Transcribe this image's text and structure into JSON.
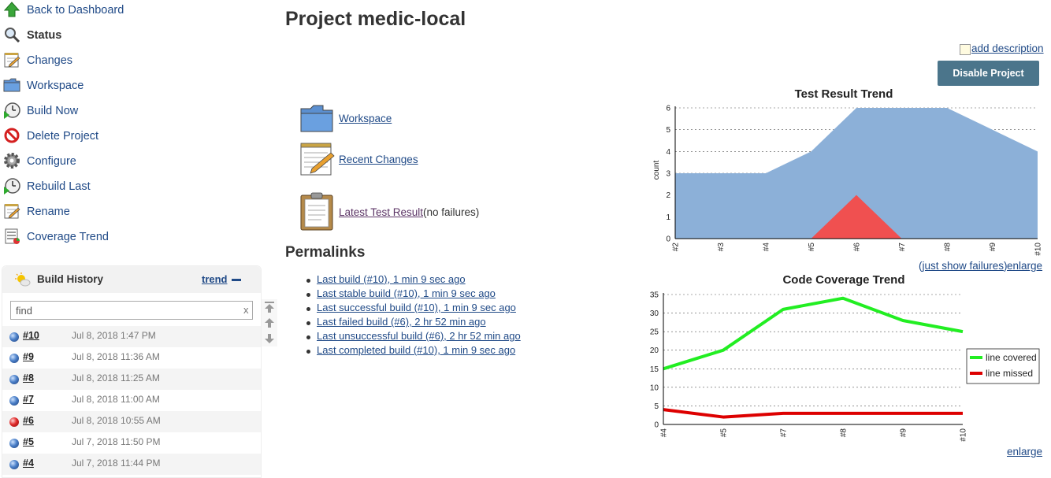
{
  "sidebar": {
    "items": [
      {
        "label": "Back to Dashboard",
        "icon": "up-arrow-icon"
      },
      {
        "label": "Status",
        "icon": "search-icon",
        "active": true
      },
      {
        "label": "Changes",
        "icon": "notepad-icon"
      },
      {
        "label": "Workspace",
        "icon": "folder-icon"
      },
      {
        "label": "Build Now",
        "icon": "clock-play-icon"
      },
      {
        "label": "Delete Project",
        "icon": "no-entry-icon"
      },
      {
        "label": "Configure",
        "icon": "gear-icon"
      },
      {
        "label": "Rebuild Last",
        "icon": "clock-play-icon"
      },
      {
        "label": "Rename",
        "icon": "notepad-icon"
      },
      {
        "label": "Coverage Trend",
        "icon": "coverage-report-icon"
      }
    ]
  },
  "build_history": {
    "title": "Build History",
    "trend_label": "trend",
    "find_value": "find",
    "clear_label": "x",
    "builds": [
      {
        "number": "#10",
        "date": "Jul 8, 2018 1:47 PM",
        "status": "blue"
      },
      {
        "number": "#9",
        "date": "Jul 8, 2018 11:36 AM",
        "status": "blue"
      },
      {
        "number": "#8",
        "date": "Jul 8, 2018 11:25 AM",
        "status": "blue"
      },
      {
        "number": "#7",
        "date": "Jul 8, 2018 11:00 AM",
        "status": "blue"
      },
      {
        "number": "#6",
        "date": "Jul 8, 2018 10:55 AM",
        "status": "red"
      },
      {
        "number": "#5",
        "date": "Jul 7, 2018 11:50 PM",
        "status": "blue"
      },
      {
        "number": "#4",
        "date": "Jul 7, 2018 11:44 PM",
        "status": "blue"
      }
    ]
  },
  "main": {
    "title": "Project medic-local",
    "add_description": "add description",
    "disable_button": "Disable Project",
    "links": {
      "workspace": "Workspace",
      "recent_changes": "Recent Changes",
      "latest_test_result": "Latest Test Result",
      "latest_test_note": "(no failures)"
    },
    "permalinks_title": "Permalinks",
    "permalinks": [
      "Last build (#10), 1 min 9 sec ago",
      "Last stable build (#10), 1 min 9 sec ago",
      "Last successful build (#10), 1 min 9 sec ago",
      "Last failed build (#6), 2 hr 52 min ago",
      "Last unsuccessful build (#6), 2 hr 52 min ago",
      "Last completed build (#10), 1 min 9 sec ago"
    ],
    "just_show_failures": "just show failures",
    "paren_open": "(",
    "paren_close": ")",
    "enlarge": "enlarge"
  },
  "colors": {
    "link": "#204a87",
    "button": "#4b758b",
    "pass_area": "#8cb0d8",
    "fail_area": "#f05050",
    "line_covered": "#22ee22",
    "line_missed": "#dd0000"
  },
  "chart_data": [
    {
      "type": "area",
      "title": "Test Result Trend",
      "ylabel": "count",
      "x": [
        "#2",
        "#3",
        "#4",
        "#5",
        "#6",
        "#7",
        "#8",
        "#9",
        "#10"
      ],
      "ylim": [
        0,
        6
      ],
      "yticks": [
        0,
        1,
        2,
        3,
        4,
        5,
        6
      ],
      "series": [
        {
          "values": [
            3,
            3,
            3,
            4,
            6,
            6,
            6,
            5,
            4
          ]
        },
        {
          "values": [
            0,
            0,
            0,
            0,
            2,
            0,
            0,
            0,
            0
          ]
        }
      ],
      "grid": true
    },
    {
      "type": "line",
      "title": "Code Coverage Trend",
      "x": [
        "#4",
        "#5",
        "#7",
        "#8",
        "#9",
        "#10"
      ],
      "ylim": [
        0,
        35
      ],
      "yticks": [
        0,
        5,
        10,
        15,
        20,
        25,
        30,
        35
      ],
      "series": [
        {
          "name": "line covered",
          "values": [
            15,
            20,
            31,
            34,
            28,
            25
          ]
        },
        {
          "name": "line missed",
          "values": [
            4,
            2,
            3,
            3,
            3,
            3
          ]
        }
      ],
      "legend": "right",
      "grid": true
    }
  ]
}
